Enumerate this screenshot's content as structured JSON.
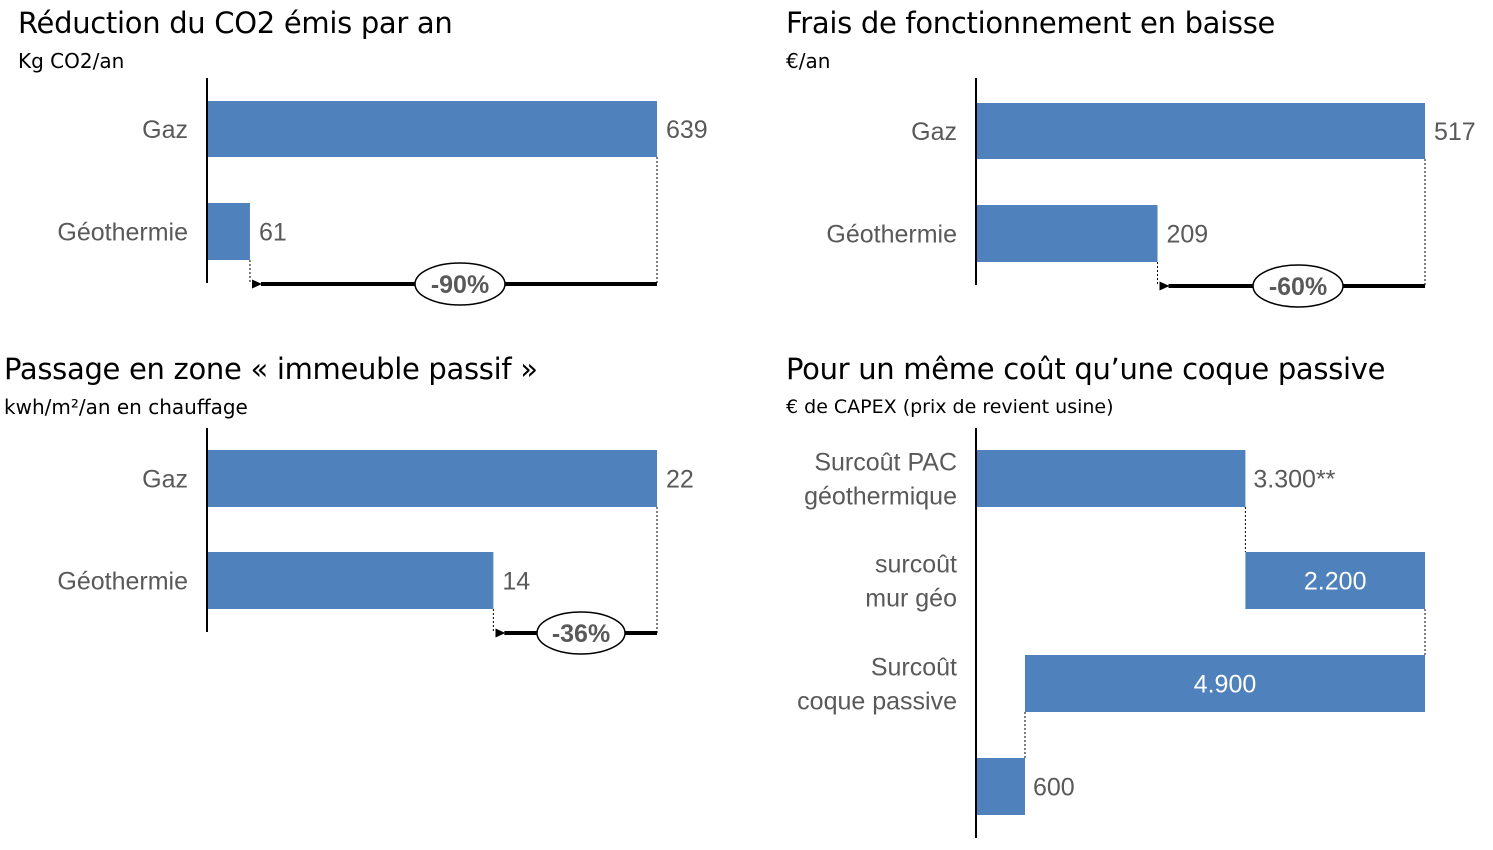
{
  "colors": {
    "bar": "#4f81bd",
    "axis": "#000000",
    "text": "#595959"
  },
  "chart_data": [
    {
      "type": "bar",
      "orientation": "horizontal",
      "title": "Réduction du CO2 émis par an",
      "subtitle": "Kg CO2/an",
      "categories": [
        "Gaz",
        "Géothermie"
      ],
      "values": [
        639,
        61
      ],
      "value_labels": [
        "639",
        "61"
      ],
      "xlim": [
        0,
        639
      ],
      "annotation": "-90%"
    },
    {
      "type": "bar",
      "orientation": "horizontal",
      "title": "Frais de fonctionnement en baisse",
      "subtitle": "€/an",
      "categories": [
        "Gaz",
        "Géothermie"
      ],
      "values": [
        517,
        209
      ],
      "value_labels": [
        "517",
        "209"
      ],
      "xlim": [
        0,
        517
      ],
      "annotation": "-60%"
    },
    {
      "type": "bar",
      "orientation": "horizontal",
      "title": "Passage en zone « immeuble passif »",
      "subtitle": "kwh/m²/an en chauffage",
      "categories": [
        "Gaz",
        "Géothermie"
      ],
      "values": [
        22,
        14
      ],
      "value_labels": [
        "22",
        "14"
      ],
      "xlim": [
        0,
        22
      ],
      "annotation": "-36%"
    },
    {
      "type": "bar",
      "subtype": "waterfall",
      "orientation": "horizontal",
      "title": "Pour un même coût qu’une coque passive",
      "subtitle": "€ de CAPEX (prix de revient usine)",
      "categories": [
        [
          "Surcoût PAC",
          "géothermique"
        ],
        [
          "surcoût ",
          "mur géo"
        ],
        [
          "Surcoût ",
          "coque passive"
        ],
        []
      ],
      "segments": [
        {
          "start": 0,
          "end": 3300,
          "label": "3.300**",
          "label_inside": false
        },
        {
          "start": 3300,
          "end": 5500,
          "label": "2.200",
          "label_inside": true
        },
        {
          "start": 600,
          "end": 5500,
          "label": "4.900",
          "label_inside": true
        },
        {
          "start": 0,
          "end": 600,
          "label": "600",
          "label_inside": false
        }
      ],
      "xlim": [
        0,
        5500
      ]
    }
  ]
}
